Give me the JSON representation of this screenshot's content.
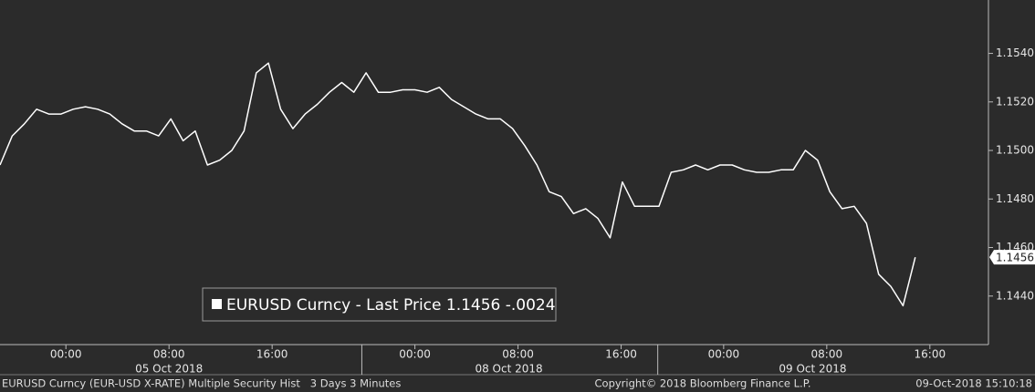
{
  "chart_data": {
    "type": "line",
    "series": [
      {
        "name": "EURUSD Curncy - Last Price 1.1456  -.0024",
        "color": "#ffffff",
        "values": [
          1.1494,
          1.1506,
          1.1511,
          1.1517,
          1.1515,
          1.1515,
          1.1517,
          1.1518,
          1.1517,
          1.1515,
          1.1511,
          1.1508,
          1.1508,
          1.1506,
          1.1513,
          1.1504,
          1.1508,
          1.1494,
          1.1496,
          1.15,
          1.1508,
          1.1532,
          1.1536,
          1.1517,
          1.1509,
          1.1515,
          1.1519,
          1.1524,
          1.1528,
          1.1524,
          1.1532,
          1.1524,
          1.1524,
          1.1525,
          1.1525,
          1.1524,
          1.1526,
          1.1521,
          1.1518,
          1.1515,
          1.1513,
          1.1513,
          1.1509,
          1.1502,
          1.1494,
          1.1483,
          1.1481,
          1.1474,
          1.1476,
          1.1472,
          1.1464,
          1.1487,
          1.1477,
          1.1477,
          1.1477,
          1.1491,
          1.1492,
          1.1494,
          1.1492,
          1.1494,
          1.1494,
          1.1492,
          1.1491,
          1.1491,
          1.1492,
          1.1492,
          1.15,
          1.1496,
          1.1483,
          1.1476,
          1.1477,
          1.147,
          1.1449,
          1.1444,
          1.1436,
          1.1456
        ]
      }
    ],
    "last_price": 1.1456,
    "ylim": [
      1.142,
      1.1562
    ],
    "yticks": [
      {
        "value": 1.144,
        "label": "1.1440"
      },
      {
        "value": 1.146,
        "label": "1.1460"
      },
      {
        "value": 1.148,
        "label": "1.1480"
      },
      {
        "value": 1.15,
        "label": "1.1500"
      },
      {
        "value": 1.152,
        "label": "1.1520"
      },
      {
        "value": 1.154,
        "label": "1.1540"
      }
    ],
    "xlim": [
      0,
      81
    ],
    "xticks": [
      {
        "value": 5.4,
        "label": "00:00"
      },
      {
        "value": 13.85,
        "label": "08:00"
      },
      {
        "value": 22.3,
        "label": "16:00"
      },
      {
        "value": 34,
        "label": "00:00"
      },
      {
        "value": 42.45,
        "label": "08:00"
      },
      {
        "value": 50.9,
        "label": "16:00"
      },
      {
        "value": 59.3,
        "label": "00:00"
      },
      {
        "value": 67.75,
        "label": "08:00"
      },
      {
        "value": 76.2,
        "label": "16:00"
      }
    ],
    "date_labels": [
      {
        "value": 13.85,
        "label": "05 Oct 2018"
      },
      {
        "value": 41.7,
        "label": "08 Oct 2018"
      },
      {
        "value": 66.6,
        "label": "09 Oct 2018"
      }
    ],
    "day_breaks": [
      29.65,
      53.9
    ]
  },
  "footer": {
    "left": "EURUSD Curncy (EUR-USD X-RATE) Multiple Security Hist   3 Days 3 Minutes",
    "center": "Copyright© 2018 Bloomberg Finance L.P.",
    "right": "09-Oct-2018 15:10:18"
  }
}
